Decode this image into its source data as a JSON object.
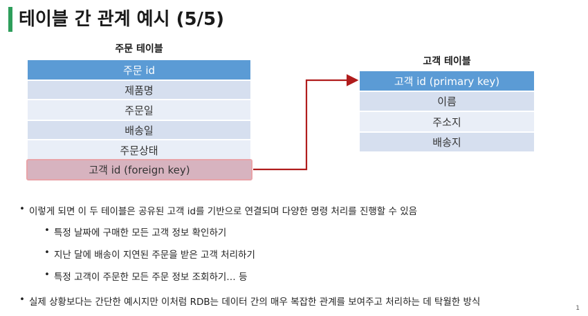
{
  "slide": {
    "title": "테이블 간 관계 예시 (5/5)",
    "page_number": "1"
  },
  "colors": {
    "accent": "#2e9e5b",
    "header_row": "#5b9bd5",
    "light_row": "#d6dfef",
    "lighter_row": "#e9eef7",
    "foreign_key_row": "#d7b3bf",
    "foreign_key_border": "#e8a3a8",
    "arrow": "#b01c1c"
  },
  "order_table": {
    "caption": "주문 테이블",
    "rows": [
      "주문 id",
      "제품명",
      "주문일",
      "배송일",
      "주문상태",
      "고객 id (foreign key)"
    ]
  },
  "customer_table": {
    "caption": "고객 테이블",
    "rows": [
      "고객 id (primary key)",
      "이름",
      "주소지",
      "배송지"
    ]
  },
  "bullets": [
    "이렇게 되면 이 두 테이블은 공유된 고객 id를 기반으로 연결되며 다양한 명령 처리를 진행할 수 있음",
    "특정 날짜에 구매한 모든 고객 정보 확인하기",
    "지난 달에 배송이 지연된 주문을 받은 고객 처리하기",
    "특정 고객이 주문한 모든 주문 정보 조회하기… 등",
    "실제 상황보다는 간단한 예시지만 이처럼 RDB는 데이터 간의 매우 복잡한 관계를 보여주고 처리하는 데 탁월한 방식"
  ]
}
